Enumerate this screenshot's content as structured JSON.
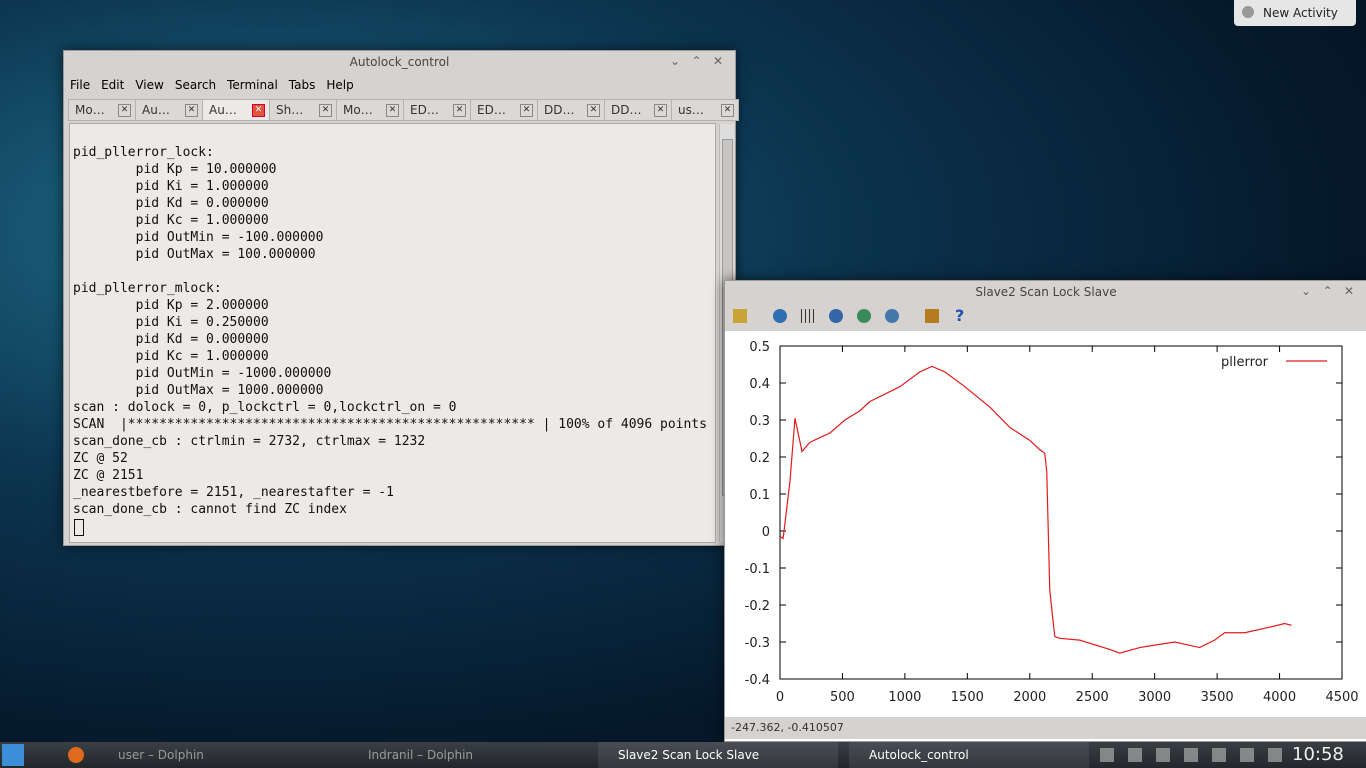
{
  "desktop": {
    "new_activity": "New Activity"
  },
  "terminal": {
    "title": "Autolock_control",
    "menu": [
      "File",
      "Edit",
      "View",
      "Search",
      "Terminal",
      "Tabs",
      "Help"
    ],
    "tabs": [
      "Mo…",
      "Au…",
      "Au…",
      "Sh…",
      "Mo…",
      "ED…",
      "ED…",
      "DD…",
      "DD…",
      "us…"
    ],
    "blocks": [
      [
        "pid_pllerror_lock:",
        "        pid Kp = 10.000000",
        "        pid Ki = 1.000000",
        "        pid Kd = 0.000000",
        "        pid Kc = 1.000000",
        "        pid OutMin = -100.000000",
        "        pid OutMax = 100.000000"
      ],
      [
        "pid_pllerror_mlock:",
        "        pid Kp = 2.000000",
        "        pid Ki = 0.250000",
        "        pid Kd = 0.000000",
        "        pid Kc = 1.000000",
        "        pid OutMin = -1000.000000",
        "        pid OutMax = 1000.000000",
        "scan : dolock = 0, p_lockctrl = 0,lockctrl_on = 0",
        "SCAN  |**************************************************** | 100% of 4096 points",
        "scan_done_cb : ctrlmin = 2732, ctrlmax = 1232",
        "ZC @ 52",
        "ZC @ 2151",
        "_nearestbefore = 2151, _nearestafter = -1",
        "scan_done_cb : cannot find ZC index"
      ]
    ]
  },
  "plot_window": {
    "title": "Slave2 Scan Lock Slave",
    "status": "-247.362, -0.410507"
  },
  "chart_data": {
    "type": "line",
    "x": [
      0,
      25,
      80,
      120,
      176,
      240,
      400,
      520,
      640,
      720,
      960,
      1120,
      1217,
      1320,
      1480,
      1680,
      1840,
      2000,
      2080,
      2120,
      2136,
      2160,
      2200,
      2240,
      2400,
      2640,
      2720,
      2880,
      3160,
      3360,
      3480,
      3560,
      3720,
      3920,
      4040,
      4096
    ],
    "series": [
      {
        "name": "pllerror",
        "color": "#e41a1c",
        "values": [
          -0.015,
          -0.02,
          0.135,
          0.305,
          0.215,
          0.24,
          0.265,
          0.3,
          0.325,
          0.35,
          0.39,
          0.43,
          0.445,
          0.43,
          0.39,
          0.335,
          0.28,
          0.245,
          0.22,
          0.21,
          0.16,
          -0.16,
          -0.285,
          -0.29,
          -0.295,
          -0.32,
          -0.33,
          -0.315,
          -0.3,
          -0.315,
          -0.295,
          -0.275,
          -0.275,
          -0.26,
          -0.25,
          -0.255
        ]
      }
    ],
    "xlim": [
      0,
      4500
    ],
    "xticks": [
      0,
      500,
      1000,
      1500,
      2000,
      2500,
      3000,
      3500,
      4000,
      4500
    ],
    "ylim": [
      -0.4,
      0.5
    ],
    "yticks": [
      -0.4,
      -0.3,
      -0.2,
      -0.1,
      0,
      0.1,
      0.2,
      0.3,
      0.4,
      0.5
    ],
    "legend": "top-right"
  },
  "taskbar": {
    "items": [
      "user – Dolphin",
      "Indranil – Dolphin",
      "Slave2 Scan Lock Slave",
      "Autolock_control"
    ],
    "clock": "10:58"
  }
}
